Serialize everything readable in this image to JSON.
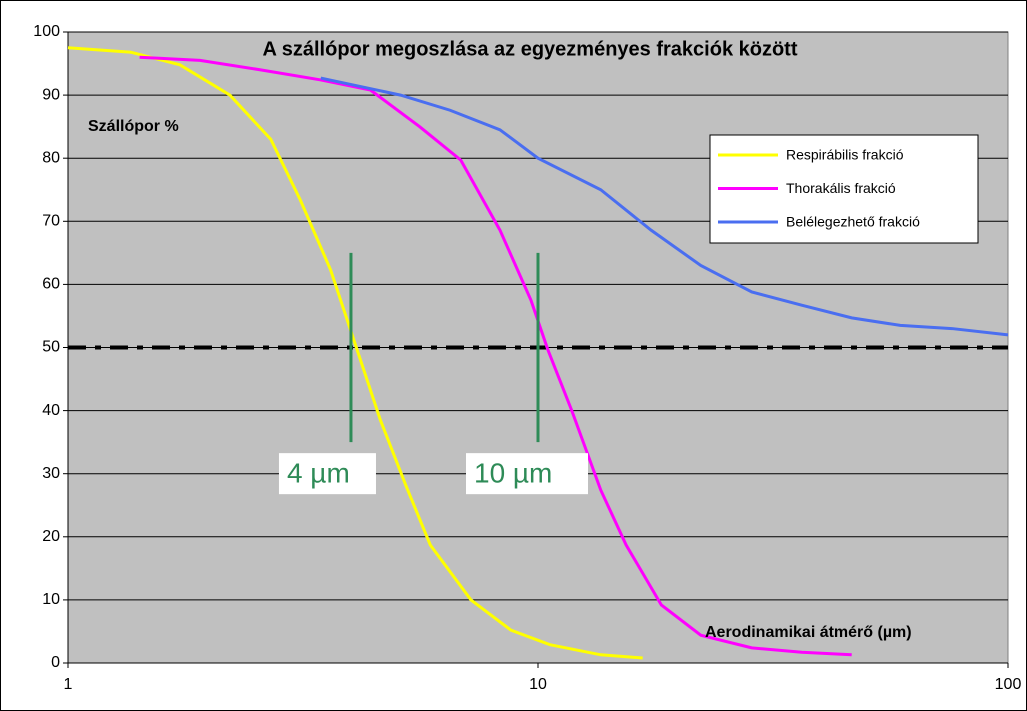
{
  "chart_data": {
    "type": "line",
    "title": "A szállópor megoszlása az egyezményes frakciók között",
    "y_label": "Szállópor %",
    "x_label": "Aerodinamikai átmérő (µm)",
    "x_scale": "log",
    "xlim": [
      1,
      100
    ],
    "xticks": [
      1,
      10,
      100
    ],
    "ylim": [
      0,
      100
    ],
    "yticks": [
      0,
      10,
      20,
      30,
      40,
      50,
      60,
      70,
      80,
      90,
      100
    ],
    "grid": true,
    "legend": "upper right",
    "reference_line": 50,
    "annotations": [
      {
        "text": "4 µm",
        "x": 4,
        "y": [
          35,
          65
        ]
      },
      {
        "text": "10 µm",
        "x": 10,
        "y": [
          35,
          65
        ]
      }
    ],
    "series": [
      {
        "name": "Respirábilis frakció",
        "color": "#ffff00",
        "x": [
          1,
          1.36,
          1.73,
          2.21,
          2.7,
          3.12,
          3.62,
          4.09,
          4.62,
          5.23,
          5.9,
          7.2,
          8.76,
          10.6,
          13.6,
          16.7
        ],
        "values": [
          97.5,
          96.8,
          94.8,
          90,
          83,
          73.4,
          62.3,
          50.4,
          38.5,
          28.2,
          18.7,
          10,
          5.2,
          2.9,
          1.3,
          0.8
        ]
      },
      {
        "name": "Thorakális frakció",
        "color": "#ff00ff",
        "x": [
          1.42,
          1.91,
          2.57,
          3.45,
          4.4,
          5.6,
          6.85,
          8.3,
          9.66,
          10.5,
          11.8,
          13.6,
          15.4,
          18.3,
          22.2,
          28.5,
          36.4,
          46.5
        ],
        "values": [
          96,
          95.5,
          94,
          92.4,
          90.8,
          85,
          79.7,
          68.6,
          57.5,
          49.6,
          40,
          27.4,
          18.7,
          9.2,
          4.4,
          2.4,
          1.7,
          1.3
        ]
      },
      {
        "name": "Belélegezhető frakció",
        "color": "#4a6ef0",
        "x": [
          3.45,
          5.1,
          6.5,
          8.3,
          10,
          13.6,
          17.4,
          22.2,
          28.5,
          36.4,
          46.5,
          59,
          76,
          100
        ],
        "values": [
          92.7,
          90,
          87.6,
          84.5,
          80,
          75,
          68.6,
          63,
          58.8,
          56.7,
          54.7,
          53.5,
          53,
          52
        ]
      }
    ]
  }
}
